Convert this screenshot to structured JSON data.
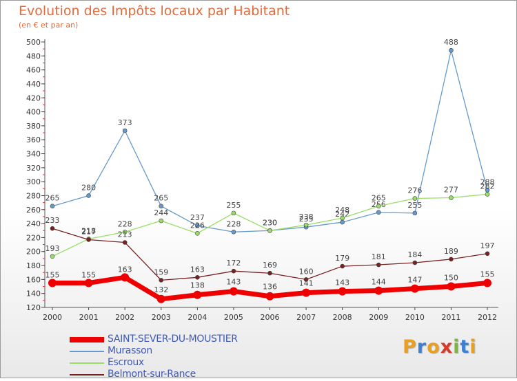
{
  "chart_data": {
    "type": "line",
    "title": "Evolution des Impôts locaux par Habitant",
    "subtitle": "(en € et par an)",
    "x": [
      "2000",
      "2001",
      "2002",
      "2003",
      "2004",
      "2005",
      "2006",
      "2007",
      "2008",
      "2009",
      "2010",
      "2011",
      "2012"
    ],
    "ylim": [
      120,
      500
    ],
    "yticks": [
      120,
      140,
      160,
      180,
      200,
      220,
      240,
      260,
      280,
      300,
      320,
      340,
      360,
      380,
      400,
      420,
      440,
      460,
      480,
      500
    ],
    "grid": false,
    "legend_position": "bottom-left",
    "series": [
      {
        "name": "SAINT-SEVER-DU-MOUSTIER",
        "color": "#ee0000",
        "values": [
          155,
          155,
          163,
          132,
          138,
          143,
          136,
          141,
          143,
          144,
          147,
          150,
          155
        ]
      },
      {
        "name": "Murasson",
        "color": "#6699cc",
        "values": [
          265,
          280,
          373,
          265,
          237,
          228,
          230,
          235,
          242,
          256,
          255,
          488,
          288
        ]
      },
      {
        "name": "Escroux",
        "color": "#99dd66",
        "values": [
          193,
          218,
          228,
          244,
          226,
          255,
          230,
          238,
          248,
          265,
          276,
          277,
          282
        ]
      },
      {
        "name": "Belmont-sur-Rance",
        "color": "#772222",
        "values": [
          233,
          217,
          213,
          159,
          163,
          172,
          169,
          160,
          179,
          181,
          184,
          189,
          197
        ]
      }
    ]
  },
  "logo": {
    "letters": [
      "P",
      "r",
      "o",
      "x",
      "i",
      "t",
      "i"
    ],
    "colors": [
      "#e8a020",
      "#3f7fd0",
      "#e8a020",
      "#d63a2a",
      "#7ab83a",
      "#3f7fd0",
      "#e8a020"
    ]
  }
}
